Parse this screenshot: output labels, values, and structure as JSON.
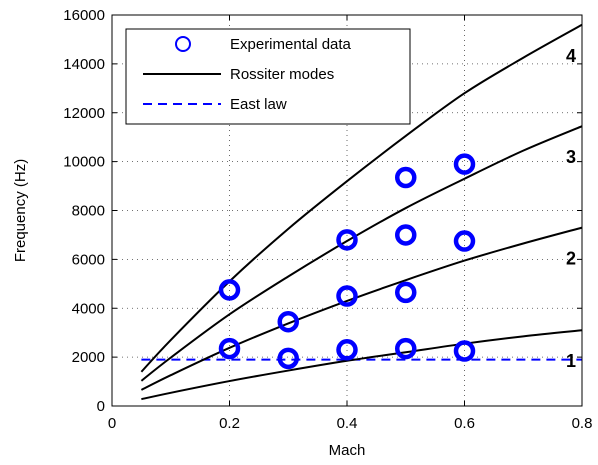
{
  "chart_data": {
    "type": "line",
    "title": "",
    "xlabel": "Mach",
    "ylabel": "Frequency (Hz)",
    "xlim": [
      0,
      0.8
    ],
    "ylim": [
      0,
      16000
    ],
    "xticks": [
      0,
      0.2,
      0.4,
      0.6,
      0.8
    ],
    "xtick_labels": [
      "0",
      "0.2",
      "0.4",
      "0.6",
      "0.8"
    ],
    "yticks": [
      0,
      2000,
      4000,
      6000,
      8000,
      10000,
      12000,
      14000,
      16000
    ],
    "ytick_labels": [
      "0",
      "2000",
      "4000",
      "6000",
      "8000",
      "10000",
      "12000",
      "14000",
      "16000"
    ],
    "grid": true,
    "legend_position": "top-left",
    "colors": {
      "experimental": "#0000ff",
      "rossiter": "#000000",
      "east": "#0000ff"
    },
    "series": [
      {
        "name": "Experimental data",
        "type": "scatter",
        "marker": "circle",
        "points": [
          [
            0.2,
            2350
          ],
          [
            0.2,
            4750
          ],
          [
            0.3,
            1950
          ],
          [
            0.3,
            3450
          ],
          [
            0.4,
            2300
          ],
          [
            0.4,
            4500
          ],
          [
            0.4,
            6800
          ],
          [
            0.5,
            2350
          ],
          [
            0.5,
            4650
          ],
          [
            0.5,
            7000
          ],
          [
            0.5,
            9350
          ],
          [
            0.6,
            2250
          ],
          [
            0.6,
            6750
          ],
          [
            0.6,
            9900
          ]
        ]
      },
      {
        "name": "Rossiter modes",
        "type": "line",
        "curves": [
          {
            "label": "1",
            "x": [
              0.05,
              0.1,
              0.2,
              0.3,
              0.4,
              0.5,
              0.6,
              0.7,
              0.8
            ],
            "y": [
              280,
              540,
              1020,
              1450,
              1850,
              2200,
              2550,
              2850,
              3100
            ]
          },
          {
            "label": "2",
            "x": [
              0.05,
              0.1,
              0.2,
              0.3,
              0.4,
              0.5,
              0.6,
              0.7,
              0.8
            ],
            "y": [
              660,
              1260,
              2380,
              3380,
              4300,
              5150,
              5950,
              6650,
              7300
            ]
          },
          {
            "label": "3",
            "x": [
              0.05,
              0.1,
              0.2,
              0.3,
              0.4,
              0.5,
              0.6,
              0.7,
              0.8
            ],
            "y": [
              1030,
              1980,
              3750,
              5300,
              6750,
              8100,
              9300,
              10450,
              11450
            ]
          },
          {
            "label": "4",
            "x": [
              0.05,
              0.1,
              0.2,
              0.3,
              0.4,
              0.5,
              0.6,
              0.7,
              0.8
            ],
            "y": [
              1400,
              2700,
              5100,
              7250,
              9200,
              11050,
              12800,
              14250,
              15600
            ]
          }
        ]
      },
      {
        "name": "East law",
        "type": "line",
        "dash": true,
        "x": [
          0.05,
          0.8
        ],
        "y": [
          1900,
          1900
        ]
      }
    ]
  }
}
